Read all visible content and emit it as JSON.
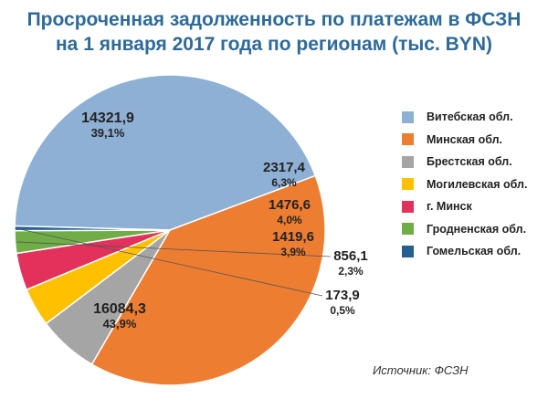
{
  "title_line1": "Просроченная задолженность по платежам в ФСЗН",
  "title_line2": "на 1 января 2017 года по регионам (тыс. BYN)",
  "source": "Источник: ФСЗН",
  "chart_data": {
    "type": "pie",
    "title": "Просроченная задолженность по платежам в ФСЗН на 1 января 2017 года по регионам (тыс. BYN)",
    "series": [
      {
        "name": "Витебская обл.",
        "value": 16084.3,
        "value_label": "16084,3",
        "percent_label": "43,9%",
        "color": "#8eb0d4"
      },
      {
        "name": "Минская обл.",
        "value": 14321.9,
        "value_label": "14321,9",
        "percent_label": "39,1%",
        "color": "#ed7d31"
      },
      {
        "name": "Брестская обл.",
        "value": 2317.4,
        "value_label": "2317,4",
        "percent_label": "6,3%",
        "color": "#a5a5a5"
      },
      {
        "name": "Могилевская обл.",
        "value": 1476.6,
        "value_label": "1476,6",
        "percent_label": "4,0%",
        "color": "#ffc000"
      },
      {
        "name": "г. Минск",
        "value": 1419.6,
        "value_label": "1419,6",
        "percent_label": "3,9%",
        "color": "#e2315b"
      },
      {
        "name": "Гродненская обл.",
        "value": 856.1,
        "value_label": "856,1",
        "percent_label": "2,3%",
        "color": "#70ad47"
      },
      {
        "name": "Гомельская обл.",
        "value": 173.9,
        "value_label": "173,9",
        "percent_label": "0,5%",
        "color": "#255e91"
      }
    ],
    "legend_position": "right"
  }
}
